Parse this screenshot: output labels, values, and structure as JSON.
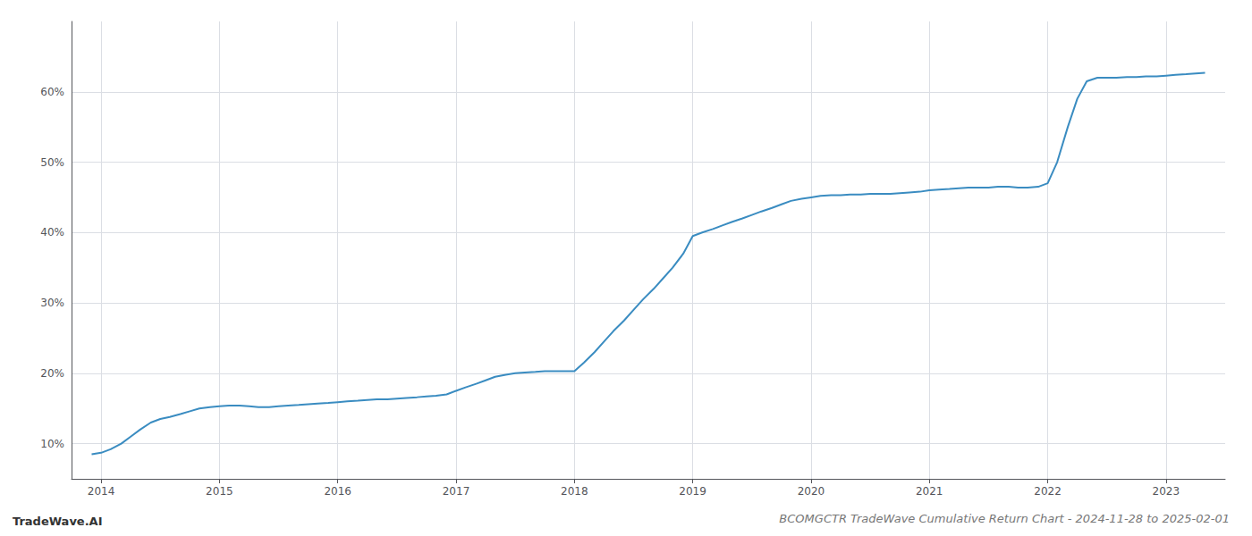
{
  "chart_data": {
    "type": "line",
    "title": "BCOMGCTR TradeWave Cumulative Return Chart - 2024-11-28 to 2025-02-01",
    "annotations": [
      "TradeWave.AI"
    ],
    "color": "#3a8cc1",
    "x": [
      2013.92,
      2014.0,
      2014.08,
      2014.17,
      2014.25,
      2014.33,
      2014.42,
      2014.5,
      2014.58,
      2014.67,
      2014.75,
      2014.83,
      2014.92,
      2015.0,
      2015.08,
      2015.17,
      2015.25,
      2015.33,
      2015.42,
      2015.5,
      2015.58,
      2015.67,
      2015.75,
      2015.83,
      2015.92,
      2016.0,
      2016.08,
      2016.17,
      2016.25,
      2016.33,
      2016.42,
      2016.5,
      2016.58,
      2016.67,
      2016.75,
      2016.83,
      2016.92,
      2017.0,
      2017.08,
      2017.17,
      2017.25,
      2017.33,
      2017.42,
      2017.5,
      2017.58,
      2017.67,
      2017.75,
      2017.83,
      2017.92,
      2018.0,
      2018.08,
      2018.17,
      2018.25,
      2018.33,
      2018.42,
      2018.5,
      2018.58,
      2018.67,
      2018.75,
      2018.83,
      2018.92,
      2019.0,
      2019.08,
      2019.17,
      2019.25,
      2019.33,
      2019.42,
      2019.5,
      2019.58,
      2019.67,
      2019.75,
      2019.83,
      2019.92,
      2020.0,
      2020.08,
      2020.17,
      2020.25,
      2020.33,
      2020.42,
      2020.5,
      2020.58,
      2020.67,
      2020.75,
      2020.83,
      2020.92,
      2021.0,
      2021.08,
      2021.17,
      2021.25,
      2021.33,
      2021.42,
      2021.5,
      2021.58,
      2021.67,
      2021.75,
      2021.83,
      2021.92,
      2022.0,
      2022.08,
      2022.17,
      2022.25,
      2022.33,
      2022.42,
      2022.5,
      2022.58,
      2022.67,
      2022.75,
      2022.83,
      2022.92,
      2023.0,
      2023.08,
      2023.17,
      2023.25,
      2023.33
    ],
    "values": [
      8.5,
      8.7,
      9.2,
      10.0,
      11.0,
      12.0,
      13.0,
      13.5,
      13.8,
      14.2,
      14.6,
      15.0,
      15.2,
      15.3,
      15.4,
      15.4,
      15.3,
      15.2,
      15.2,
      15.3,
      15.4,
      15.5,
      15.6,
      15.7,
      15.8,
      15.9,
      16.0,
      16.1,
      16.2,
      16.3,
      16.3,
      16.4,
      16.5,
      16.6,
      16.7,
      16.8,
      17.0,
      17.5,
      18.0,
      18.5,
      19.0,
      19.5,
      19.8,
      20.0,
      20.1,
      20.2,
      20.3,
      20.3,
      20.3,
      20.3,
      21.5,
      23.0,
      24.5,
      26.0,
      27.5,
      29.0,
      30.5,
      32.0,
      33.5,
      35.0,
      37.0,
      39.5,
      40.0,
      40.5,
      41.0,
      41.5,
      42.0,
      42.5,
      43.0,
      43.5,
      44.0,
      44.5,
      44.8,
      45.0,
      45.2,
      45.3,
      45.3,
      45.4,
      45.4,
      45.5,
      45.5,
      45.5,
      45.6,
      45.7,
      45.8,
      46.0,
      46.1,
      46.2,
      46.3,
      46.4,
      46.4,
      46.4,
      46.5,
      46.5,
      46.4,
      46.4,
      46.5,
      47.0,
      50.0,
      55.0,
      59.0,
      61.5,
      62.0,
      62.0,
      62.0,
      62.1,
      62.1,
      62.2,
      62.2,
      62.3,
      62.4,
      62.5,
      62.6,
      62.7
    ],
    "xlim": [
      2013.75,
      2023.5
    ],
    "xticks": [
      2014,
      2015,
      2016,
      2017,
      2018,
      2019,
      2020,
      2021,
      2022,
      2023
    ],
    "ylim": [
      5,
      70
    ],
    "yticks": [
      {
        "value": 10,
        "label": "10%"
      },
      {
        "value": 20,
        "label": "20%"
      },
      {
        "value": 30,
        "label": "30%"
      },
      {
        "value": 40,
        "label": "40%"
      },
      {
        "value": 50,
        "label": "50%"
      },
      {
        "value": 60,
        "label": "60%"
      }
    ],
    "grid": true
  }
}
